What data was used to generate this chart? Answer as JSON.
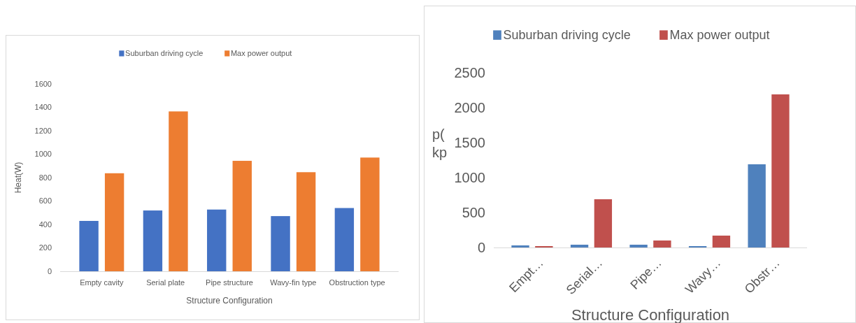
{
  "chart_data": [
    {
      "type": "bar",
      "categories": [
        "Empty cavity",
        "Serial plate",
        "Pipe structure",
        "Wavy-fin type",
        "Obstruction type"
      ],
      "xlabel": "Structure Configuration",
      "ylabel": "Heat(W)",
      "ylim": [
        0,
        1600
      ],
      "yticks": [
        0,
        200,
        400,
        600,
        800,
        1000,
        1200,
        1400,
        1600
      ],
      "legend": "top",
      "grid": false,
      "series": [
        {
          "name": "Suburban driving cycle",
          "color": "#4472c4",
          "values": [
            430,
            519,
            527,
            471,
            540
          ]
        },
        {
          "name": "Max power output",
          "color": "#ed7d31",
          "values": [
            837,
            1365,
            943,
            846,
            971
          ]
        }
      ]
    },
    {
      "type": "bar",
      "categories": [
        "Empt…",
        "Serial…",
        "Pipe…",
        "Wavy…",
        "Obstr…"
      ],
      "xlabel": "Structure Configuration",
      "ylabel": "p( kp",
      "ylim": [
        0,
        2500
      ],
      "yticks": [
        0,
        500,
        1000,
        1500,
        2000,
        2500
      ],
      "legend": "top",
      "grid": false,
      "series": [
        {
          "name": "Suburban driving cycle",
          "color": "#4f81bd",
          "values": [
            30,
            40,
            40,
            20,
            1190
          ]
        },
        {
          "name": "Max power output",
          "color": "#c0504d",
          "values": [
            20,
            690,
            100,
            170,
            2190
          ]
        }
      ]
    }
  ]
}
